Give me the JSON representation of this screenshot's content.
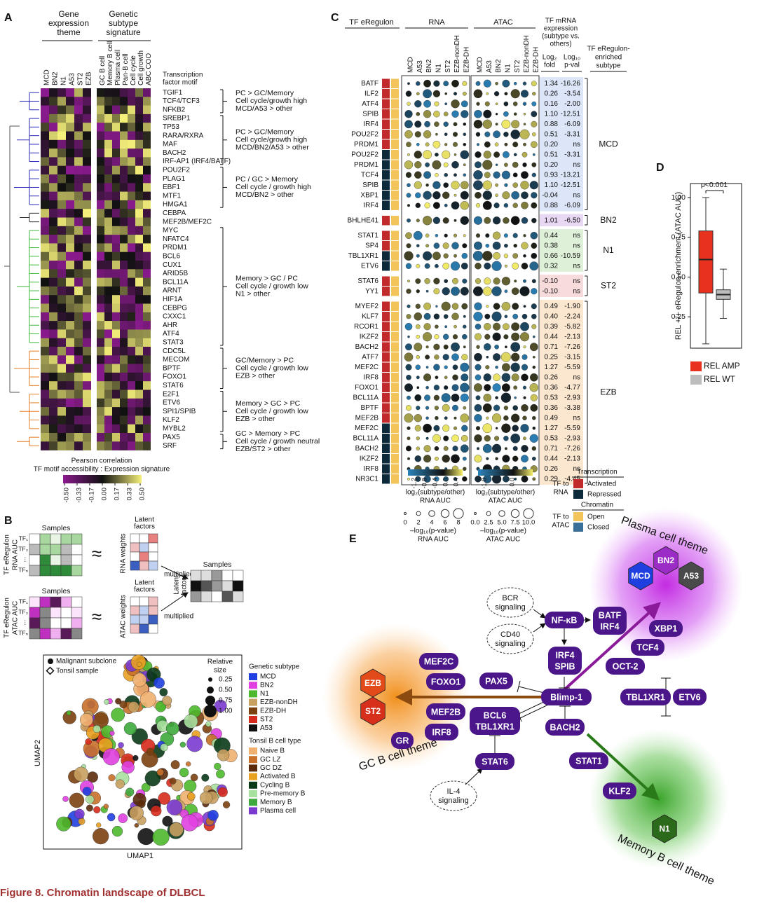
{
  "caption": "Figure 8. Chromatin landscape of DLBCL",
  "panel_a": {
    "label": "A",
    "left_header": [
      "Gene",
      "expression",
      "theme"
    ],
    "right_header": [
      "Genetic",
      "subtype",
      "signature"
    ],
    "motif_header": [
      "Transcription",
      "factor motif"
    ],
    "left_columns": [
      "MCD",
      "BN2",
      "N1",
      "A53",
      "ST2",
      "EZB"
    ],
    "right_columns": [
      "GC B cell",
      "Memory B cell",
      "Plasma cell",
      "Pan-B cell",
      "Cell cycle",
      "Cell growth",
      "ABC COO"
    ],
    "groups": [
      {
        "color": "#2a2ab8",
        "motifs": [
          "TGIF1",
          "TCF4/TCF3",
          "NFKB2"
        ],
        "theme": [
          "PC > GC/Memory",
          "Cell cycle/growth high",
          "MCD/A53 > other"
        ]
      },
      {
        "color": "#2a2ab8",
        "motifs": [
          "SREBP1",
          "TP53",
          "RARA/RXRA",
          "MAF",
          "BACH2",
          "IRF-AP1 (IRF4/BATF)"
        ],
        "theme": [
          "PC > GC/Memory",
          "Cell cycle/growth high",
          "MCD/BN2/A53 > other"
        ]
      },
      {
        "color": "#2a2ab8",
        "motifs": [
          "POU2F2",
          "PLAG1",
          "EBF1",
          "MTF1",
          "HMGA1"
        ],
        "theme": [
          "PC / GC > Memory",
          "Cell cycle / growth high",
          "MCD/BN2 > other"
        ]
      },
      {
        "color": "#333333",
        "motifs": [
          "CEBPA",
          "MEF2B/MEF2C"
        ]
      },
      {
        "color": "#3cb83c",
        "motifs": [
          "MYC",
          "NFATC4",
          "PRDM1",
          "BCL6",
          "CUX1",
          "ARID5B",
          "BCL11A",
          "ARNT",
          "HIF1A",
          "CEBPG",
          "CXXC1",
          "AHR",
          "ATF4",
          "STAT3"
        ],
        "theme": [
          "Memory > GC / PC",
          "Cell cycle / growth low",
          "N1 > other"
        ]
      },
      {
        "color": "#e67e22",
        "motifs": [
          "CDC5L",
          "MECOM",
          "BPTF",
          "FOXO1",
          "STAT6"
        ],
        "theme": [
          "GC/Memory > PC",
          "Cell cycle / growth low",
          "EZB > other"
        ]
      },
      {
        "color": "#e67e22",
        "motifs": [
          "E2F1",
          "ETV6",
          "SPI1/SPIB",
          "KLF2",
          "MYBL2"
        ],
        "theme": [
          "Memory > GC > PC",
          "Cell cycle / growth low",
          "EZB > other"
        ]
      },
      {
        "color": "#e67e22",
        "motifs": [
          "PAX5",
          "SRF"
        ],
        "theme": [
          "GC > Memory > PC",
          "Cell cycle / growth neutral",
          "EZB/ST2 > other"
        ]
      }
    ],
    "legend": {
      "title": [
        "Pearson correlation",
        "TF motif accessibility : Expression signature"
      ],
      "ticks": [
        "-0.50",
        "-0.33",
        "-0.17",
        "0.00",
        "0.17",
        "0.33",
        "0.50"
      ]
    }
  },
  "panel_b": {
    "label": "B",
    "rna": {
      "samples": "Samples",
      "latent": [
        "Latent",
        "factors"
      ],
      "row_title": [
        "TF eRegulon",
        "RNA AUC"
      ],
      "tfs": [
        "TF₁",
        "TF₂",
        "⋮",
        "TFₙ"
      ],
      "weights": "RNA weights"
    },
    "atac": {
      "samples": "Samples",
      "latent": [
        "Latent",
        "factors"
      ],
      "row_title": [
        "TF eRegulon",
        "ATAC AUC"
      ],
      "tfs": [
        "TF₁",
        "TF₂",
        "⋮",
        "TFₙ"
      ],
      "weights": "ATAC weights"
    },
    "approx": "≈",
    "multiplied": "multiplied",
    "product": {
      "samples": "Samples",
      "latent": [
        "Latent",
        "factors"
      ]
    },
    "umap": {
      "x_label": "UMAP1",
      "y_label": "UMAP2",
      "markers": [
        "Malignant subclone",
        "Tonsil sample"
      ],
      "size_legend": {
        "title": [
          "Relative",
          "size"
        ],
        "values": [
          "0.25",
          "0.50",
          "0.75",
          "1.00"
        ]
      },
      "genetic_subtype": {
        "title": "Genetic subtype",
        "items": [
          {
            "name": "MCD",
            "color": "#1f3fe0"
          },
          {
            "name": "BN2",
            "color": "#e040e0"
          },
          {
            "name": "N1",
            "color": "#4cb82c"
          },
          {
            "name": "EZB-nonDH",
            "color": "#c8a060"
          },
          {
            "name": "EZB-DH",
            "color": "#7a4010"
          },
          {
            "name": "ST2",
            "color": "#d62a1c"
          },
          {
            "name": "A53",
            "color": "#111111"
          }
        ]
      },
      "tonsil": {
        "title": "Tonsil B cell type",
        "items": [
          {
            "name": "Naive B",
            "color": "#f0b070"
          },
          {
            "name": "GC LZ",
            "color": "#c8702a"
          },
          {
            "name": "GC DZ",
            "color": "#5a2a0a"
          },
          {
            "name": "Activated B",
            "color": "#e8a020"
          },
          {
            "name": "Cycling B",
            "color": "#0a3a18"
          },
          {
            "name": "Pre-memory B",
            "color": "#a8e0a0"
          },
          {
            "name": "Memory B",
            "color": "#3caa3c"
          },
          {
            "name": "Plasma cell",
            "color": "#7a3ad0"
          }
        ]
      }
    }
  },
  "panel_c": {
    "label": "C",
    "headers": {
      "tf": "TF eRegulon",
      "rna": "RNA",
      "atac": "ATAC",
      "expression": [
        "TF mRNA",
        "expression",
        "(subtype vs.",
        "others)"
      ],
      "fold": [
        "Log₂",
        "fold"
      ],
      "pval": [
        "Log₁₀",
        "p-val"
      ],
      "subtype": [
        "TF eRegulon-",
        "enriched",
        "subtype"
      ]
    },
    "columns": [
      "MCD",
      "A53",
      "BN2",
      "N1",
      "ST2",
      "EZB-nonDH",
      "EZB-DH"
    ],
    "groups": [
      {
        "subtype": "MCD",
        "color": "#dce6f8",
        "rows": [
          {
            "tf": "BATF",
            "rna": "#c22b2b",
            "fold": "1.34",
            "pval": "-16.26"
          },
          {
            "tf": "ILF2",
            "rna": "#c22b2b",
            "fold": "0.26",
            "pval": "-3.54"
          },
          {
            "tf": "ATF4",
            "rna": "#c22b2b",
            "fold": "0.16",
            "pval": "-2.00"
          },
          {
            "tf": "SPIB",
            "rna": "#c22b2b",
            "fold": "1.10",
            "pval": "-12.51"
          },
          {
            "tf": "IRF4",
            "rna": "#c22b2b",
            "fold": "0.88",
            "pval": "-6.09"
          },
          {
            "tf": "POU2F2",
            "rna": "#c22b2b",
            "fold": "0.51",
            "pval": "-3.31"
          },
          {
            "tf": "PRDM1",
            "rna": "#c22b2b",
            "fold": "0.20",
            "pval": "ns"
          },
          {
            "tf": "POU2F2",
            "rna": "#0d2a3a",
            "fold": "0.51",
            "pval": "-3.31"
          },
          {
            "tf": "PRDM1",
            "rna": "#0d2a3a",
            "fold": "0.20",
            "pval": "ns"
          },
          {
            "tf": "TCF4",
            "rna": "#0d2a3a",
            "fold": "0.93",
            "pval": "-13.21"
          },
          {
            "tf": "SPIB",
            "rna": "#0d2a3a",
            "fold": "1.10",
            "pval": "-12.51"
          },
          {
            "tf": "XBP1",
            "rna": "#0d2a3a",
            "fold": "-0.04",
            "pval": "ns"
          },
          {
            "tf": "IRF4",
            "rna": "#0d2a3a",
            "fold": "0.88",
            "pval": "-6.09"
          }
        ]
      },
      {
        "subtype": "BN2",
        "color": "#e8d8f4",
        "rows": [
          {
            "tf": "BHLHE41",
            "rna": "#c22b2b",
            "fold": "1.01",
            "pval": "-6.50"
          }
        ]
      },
      {
        "subtype": "N1",
        "color": "#dff0d8",
        "rows": [
          {
            "tf": "STAT1",
            "rna": "#c22b2b",
            "fold": "0.44",
            "pval": "ns"
          },
          {
            "tf": "SP4",
            "rna": "#c22b2b",
            "fold": "0.38",
            "pval": "ns"
          },
          {
            "tf": "TBL1XR1",
            "rna": "#0d2a3a",
            "fold": "0.66",
            "pval": "-10.59"
          },
          {
            "tf": "ETV6",
            "rna": "#0d2a3a",
            "fold": "0.32",
            "pval": "ns"
          }
        ]
      },
      {
        "subtype": "ST2",
        "color": "#f8dcdc",
        "rows": [
          {
            "tf": "STAT6",
            "rna": "#c22b2b",
            "fold": "-0.10",
            "pval": "ns"
          },
          {
            "tf": "YY1",
            "rna": "#c22b2b",
            "fold": "-0.10",
            "pval": "ns"
          }
        ]
      },
      {
        "subtype": "EZB",
        "color": "#fbe6cf",
        "rows": [
          {
            "tf": "MYEF2",
            "rna": "#c22b2b",
            "fold": "0.49",
            "pval": "-1.90"
          },
          {
            "tf": "KLF7",
            "rna": "#c22b2b",
            "fold": "0.40",
            "pval": "-2.24"
          },
          {
            "tf": "RCOR1",
            "rna": "#c22b2b",
            "fold": "0.39",
            "pval": "-5.82"
          },
          {
            "tf": "IKZF2",
            "rna": "#c22b2b",
            "fold": "0.44",
            "pval": "-2.13"
          },
          {
            "tf": "BACH2",
            "rna": "#c22b2b",
            "fold": "0.71",
            "pval": "-7.26"
          },
          {
            "tf": "ATF7",
            "rna": "#c22b2b",
            "fold": "0.25",
            "pval": "-3.15"
          },
          {
            "tf": "MEF2C",
            "rna": "#c22b2b",
            "fold": "1.27",
            "pval": "-5.59"
          },
          {
            "tf": "IRF8",
            "rna": "#c22b2b",
            "fold": "0.26",
            "pval": "ns"
          },
          {
            "tf": "FOXO1",
            "rna": "#c22b2b",
            "fold": "0.36",
            "pval": "-4.77"
          },
          {
            "tf": "BCL11A",
            "rna": "#c22b2b",
            "fold": "0.53",
            "pval": "-2.93"
          },
          {
            "tf": "BPTF",
            "rna": "#c22b2b",
            "fold": "0.36",
            "pval": "-3.38"
          },
          {
            "tf": "MEF2B",
            "rna": "#c22b2b",
            "fold": "0.49",
            "pval": "ns"
          },
          {
            "tf": "MEF2C",
            "rna": "#0d2a3a",
            "fold": "1.27",
            "pval": "-5.59"
          },
          {
            "tf": "BCL11A",
            "rna": "#0d2a3a",
            "fold": "0.53",
            "pval": "-2.93"
          },
          {
            "tf": "BACH2",
            "rna": "#0d2a3a",
            "fold": "0.71",
            "pval": "-7.26"
          },
          {
            "tf": "IKZF2",
            "rna": "#0d2a3a",
            "fold": "0.44",
            "pval": "-2.13"
          },
          {
            "tf": "IRF8",
            "rna": "#0d2a3a",
            "fold": "0.26",
            "pval": "ns"
          },
          {
            "tf": "NR3C1",
            "rna": "#0d2a3a",
            "fold": "0.29",
            "pval": "-4.45"
          }
        ]
      }
    ],
    "legend": {
      "rna_scale": {
        "ticks": [
          "-1.2",
          "-0.8",
          "-0.4",
          "0.0",
          "0.4"
        ],
        "title": "log₂(subtype/other)",
        "subtitle": "RNA AUC"
      },
      "atac_scale": {
        "ticks": [
          "-1.0",
          "0.0"
        ],
        "title": "log₂(subtype/other)",
        "subtitle": "ATAC AUC"
      },
      "rna_size": {
        "values": [
          "0",
          "2",
          "4",
          "6",
          "8"
        ],
        "title": "–log₁₀(p-value)",
        "subtitle": "RNA AUC"
      },
      "atac_size": {
        "values": [
          "0.0",
          "2.5",
          "5.0",
          "7.5",
          "10.0"
        ],
        "title": "–log₁₀(p-value)",
        "subtitle": "ATAC AUC"
      },
      "transcription": {
        "title": "Transcription",
        "side": [
          "TF to",
          "RNA"
        ],
        "items": [
          {
            "name": "Activated",
            "color": "#c22b2b"
          },
          {
            "name": "Repressed",
            "color": "#0d2a3a"
          }
        ]
      },
      "chromatin": {
        "title": "Chromatin",
        "side": [
          "TF to",
          "ATAC"
        ],
        "items": [
          {
            "name": "Open",
            "color": "#f2c45a"
          },
          {
            "name": "Closed",
            "color": "#3a6f9a"
          }
        ]
      }
    }
  },
  "panel_d": {
    "label": "D"
  },
  "chart_data": {
    "type": "box",
    "y_label": "REL +/+ eRegulon enrichment (ATAC AUC)",
    "annotation": "p<0.001",
    "ylim": [
      0.053,
      1.088
    ],
    "yticks": [
      {
        "value": 0.25,
        "label": "0.25"
      },
      {
        "value": 0.5,
        "label": "0.50"
      },
      {
        "value": 0.75,
        "label": "0.75"
      },
      {
        "value": 1,
        "label": "1.00"
      }
    ],
    "series": [
      {
        "name": "REL AMP",
        "color": "#e8321e",
        "min": 0.08,
        "q1": 0.4,
        "median": 0.61,
        "q3": 0.79,
        "max": 1.0
      },
      {
        "name": "REL WT",
        "color": "#bdbdbd",
        "min": 0.24,
        "q1": 0.36,
        "median": 0.39,
        "q3": 0.42,
        "max": 0.55
      }
    ]
  },
  "panel_e": {
    "label": "E",
    "themes": [
      "Plasma cell theme",
      "GC B cell theme",
      "Memory B cell theme"
    ],
    "subtypes": [
      {
        "name": "MCD",
        "color": "#1f3fe0"
      },
      {
        "name": "BN2",
        "color": "#9b2cc5"
      },
      {
        "name": "A53",
        "color": "#4a4a4a"
      },
      {
        "name": "EZB",
        "color": "#e34a1a"
      },
      {
        "name": "ST2",
        "color": "#d6301c"
      },
      {
        "name": "N1",
        "color": "#2b6a1a"
      }
    ],
    "signals": [
      [
        "BCR",
        "signaling"
      ],
      [
        "CD40",
        "signaling"
      ],
      [
        "IL-4",
        "signaling"
      ]
    ],
    "nodes": [
      [
        "NF-κB"
      ],
      [
        "BATF",
        "IRF4"
      ],
      [
        "XBP1"
      ],
      [
        "TCF4"
      ],
      [
        "OCT-2"
      ],
      [
        "IRF4",
        "SPIB"
      ],
      [
        "Blimp-1"
      ],
      [
        "BACH2"
      ],
      [
        "TBL1XR1"
      ],
      [
        "ETV6"
      ],
      [
        "PAX5"
      ],
      [
        "MEF2C"
      ],
      [
        "FOXO1"
      ],
      [
        "MEF2B"
      ],
      [
        "IRF8"
      ],
      [
        "GR"
      ],
      [
        "BCL6",
        "TBL1XR1"
      ],
      [
        "STAT6"
      ],
      [
        "STAT1"
      ],
      [
        "KLF2"
      ]
    ]
  }
}
